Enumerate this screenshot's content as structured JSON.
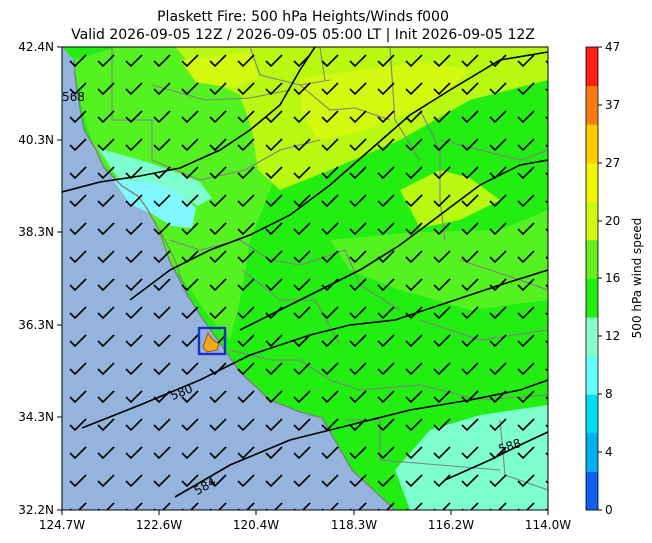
{
  "title": {
    "line1": "Plaskett Fire: 500 hPa Heights/Winds f000",
    "line2": "Valid 2026-09-05 12Z / 2026-09-05 05:00 LT | Init 2026-09-05 12Z"
  },
  "axes": {
    "lat_ticks": [
      "42.4N",
      "40.3N",
      "38.3N",
      "36.3N",
      "34.3N",
      "32.2N"
    ],
    "lon_ticks": [
      "124.7W",
      "122.6W",
      "120.4W",
      "118.3W",
      "116.2W",
      "114.0W"
    ]
  },
  "colorbar": {
    "label": "500 hPa wind speed",
    "ticks": [
      "0",
      "4",
      "8",
      "12",
      "16",
      "20",
      "27",
      "37",
      "47"
    ]
  },
  "contours": {
    "labels": [
      "568",
      "580",
      "584",
      "588"
    ]
  },
  "colors": {
    "ocean": "#94b4de",
    "land_strong": "#22ee11",
    "land_mid": "#55f222",
    "land_yellow": "#b8f811",
    "land_lightyellow": "#d4f80e",
    "land_aqua": "#7dffd0",
    "land_cyan": "#7ff8ff",
    "fire_marker": "#f2a818",
    "box": "#1e2ecc",
    "borders": "#808080",
    "colorbar": [
      "#1060f0",
      "#00b0f0",
      "#00dcf0",
      "#66ffff",
      "#88ffcc",
      "#22ee11",
      "#66ee22",
      "#ccf811",
      "#f2f50a",
      "#ffcc00",
      "#ff7a10",
      "#ff2010"
    ]
  }
}
